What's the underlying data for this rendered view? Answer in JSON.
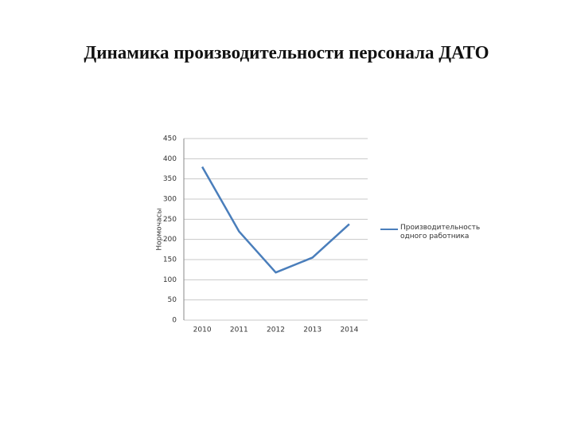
{
  "chart_data": {
    "type": "line",
    "title": "Динамика производительности персонала ДАТО",
    "y_label": "Нормочасы",
    "categories": [
      "2010",
      "2011",
      "2012",
      "2013",
      "2014"
    ],
    "series": [
      {
        "name": "Производительность одного работника",
        "color": "#4a7ebb",
        "values": [
          380,
          220,
          118,
          155,
          238
        ]
      }
    ],
    "ylim": [
      0,
      450
    ],
    "yticks": [
      0,
      50,
      100,
      150,
      200,
      250,
      300,
      350,
      400,
      450
    ],
    "grid": true,
    "legend": "right"
  }
}
